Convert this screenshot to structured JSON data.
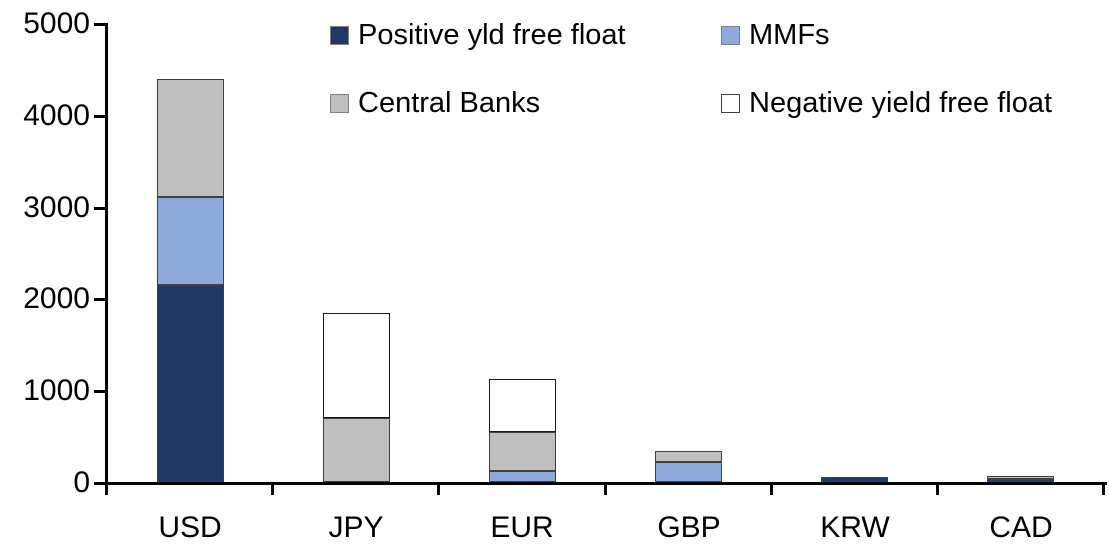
{
  "chart_data": {
    "type": "bar",
    "stacked": true,
    "title": "",
    "xlabel": "",
    "ylabel": "",
    "grid": false,
    "legend_position": "top",
    "categories": [
      "USD",
      "JPY",
      "EUR",
      "GBP",
      "KRW",
      "CAD"
    ],
    "series": [
      {
        "name": "Positive yld free float",
        "color": "#1F3864",
        "border": "#404040",
        "values": [
          2150,
          0,
          0,
          0,
          50,
          35
        ]
      },
      {
        "name": "MMFs",
        "color": "#8EA9DB",
        "border": "#404040",
        "values": [
          950,
          0,
          115,
          220,
          0,
          0
        ]
      },
      {
        "name": "Central Banks",
        "color": "#BFBFBF",
        "border": "#404040",
        "values": [
          1290,
          700,
          430,
          115,
          0,
          35
        ]
      },
      {
        "name": "Negative yield free float",
        "color": "#FFFFFF",
        "border": "#1A1A1A",
        "values": [
          0,
          1140,
          575,
          0,
          0,
          0
        ]
      }
    ],
    "totals": [
      4390,
      1840,
      1120,
      335,
      50,
      70
    ],
    "ylim": [
      0,
      5000
    ],
    "y_ticks": [
      0,
      1000,
      2000,
      3000,
      4000,
      5000
    ]
  },
  "colors": {
    "axis": "#000000",
    "background": "#FFFFFF",
    "white_swatch_border": "#404040"
  }
}
